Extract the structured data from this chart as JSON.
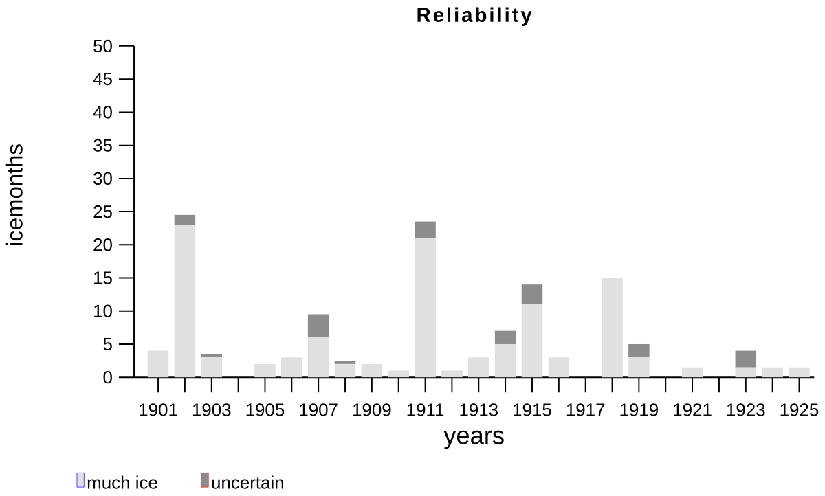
{
  "chart_data": {
    "type": "bar",
    "title": "Reliability",
    "xlabel": "years",
    "ylabel": "icemonths",
    "categories": [
      "1901",
      null,
      "1903",
      null,
      "1905",
      null,
      "1907",
      null,
      "1909",
      null,
      "1911",
      null,
      "1913",
      null,
      "1915",
      null,
      "1917",
      null,
      "1919",
      null,
      "1921",
      null,
      "1923",
      null,
      "1925"
    ],
    "stacked": true,
    "series": [
      {
        "name": "much ice",
        "color": "#e0e0e0",
        "values": [
          4,
          23,
          3,
          0,
          2,
          3,
          6,
          2,
          2,
          1,
          21,
          1,
          3,
          5,
          11,
          3,
          0,
          15,
          3,
          0,
          1.5,
          0,
          1.5,
          1.5,
          1.5
        ]
      },
      {
        "name": "uncertain",
        "color": "#8c8c8c",
        "values": [
          0,
          1.5,
          0.5,
          0,
          0,
          0,
          3.5,
          0.5,
          0,
          0,
          2.5,
          0,
          0,
          2,
          3,
          0,
          0,
          0,
          2,
          0,
          0,
          0,
          2.5,
          0,
          0
        ]
      }
    ],
    "ylim": [
      0,
      50
    ],
    "yticks": [
      0,
      5,
      10,
      15,
      20,
      25,
      30,
      35,
      40,
      45,
      50
    ],
    "legend": "bottom left",
    "grid": false
  }
}
